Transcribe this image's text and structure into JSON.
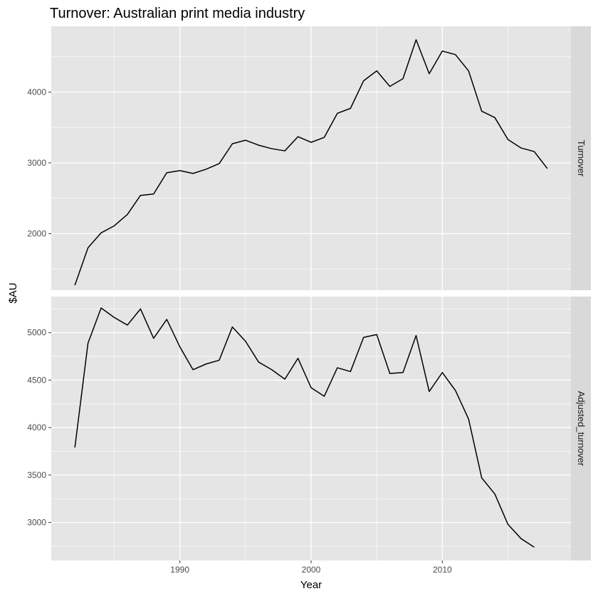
{
  "chart_data": {
    "type": "line",
    "title": "Turnover: Australian print media industry",
    "xlabel": "Year",
    "ylabel": "$AU",
    "xlim": [
      1980.2,
      2019.8
    ],
    "x_ticks": [
      1990,
      2000,
      2010
    ],
    "x_tick_labels": [
      "1990",
      "2000",
      "2010"
    ],
    "grid": true,
    "colors": {
      "panel_bg": "#e5e5e5",
      "strip_bg": "#d9d9d9",
      "grid": "#ffffff",
      "line": "#000000"
    },
    "facets": [
      {
        "name": "Turnover",
        "strip_label": "Turnover",
        "ylim": [
          1200,
          4930
        ],
        "y_ticks": [
          2000,
          3000,
          4000
        ],
        "y_tick_labels": [
          "2000",
          "3000",
          "4000"
        ],
        "series": [
          {
            "x": [
              1982,
              1983,
              1984,
              1985,
              1986,
              1987,
              1988,
              1989,
              1990,
              1991,
              1992,
              1993,
              1994,
              1995,
              1996,
              1997,
              1998,
              1999,
              2000,
              2001,
              2002,
              2003,
              2004,
              2005,
              2006,
              2007,
              2008,
              2009,
              2010,
              2011,
              2012,
              2013,
              2014,
              2015,
              2016,
              2017,
              2018
            ],
            "values": [
              1270,
              1800,
              2010,
              2110,
              2270,
              2540,
              2560,
              2860,
              2890,
              2850,
              2910,
              2990,
              3270,
              3320,
              3250,
              3200,
              3170,
              3370,
              3290,
              3360,
              3700,
              3770,
              4160,
              4300,
              4080,
              4190,
              4740,
              4260,
              4580,
              4530,
              4300,
              3730,
              3640,
              3330,
              3210,
              3160,
              2920
            ]
          }
        ]
      },
      {
        "name": "Adjusted_turnover",
        "strip_label": "Adjusted_turnover",
        "ylim": [
          2600,
          5380
        ],
        "y_ticks": [
          3000,
          3500,
          4000,
          4500,
          5000
        ],
        "y_tick_labels": [
          "3000",
          "3500",
          "4000",
          "4500",
          "5000"
        ],
        "series": [
          {
            "x": [
              1982,
              1983,
              1984,
              1985,
              1986,
              1987,
              1988,
              1989,
              1990,
              1991,
              1992,
              1993,
              1994,
              1995,
              1996,
              1997,
              1998,
              1999,
              2000,
              2001,
              2002,
              2003,
              2004,
              2005,
              2006,
              2007,
              2008,
              2009,
              2010,
              2011,
              2012,
              2013,
              2014,
              2015,
              2016,
              2017
            ],
            "values": [
              3790,
              4890,
              5260,
              5160,
              5080,
              5250,
              4940,
              5140,
              4850,
              4610,
              4670,
              4710,
              5060,
              4910,
              4690,
              4610,
              4510,
              4730,
              4420,
              4330,
              4630,
              4590,
              4950,
              4980,
              4570,
              4580,
              4970,
              4380,
              4580,
              4390,
              4090,
              3470,
              3300,
              2980,
              2830,
              2740
            ]
          }
        ]
      }
    ]
  }
}
